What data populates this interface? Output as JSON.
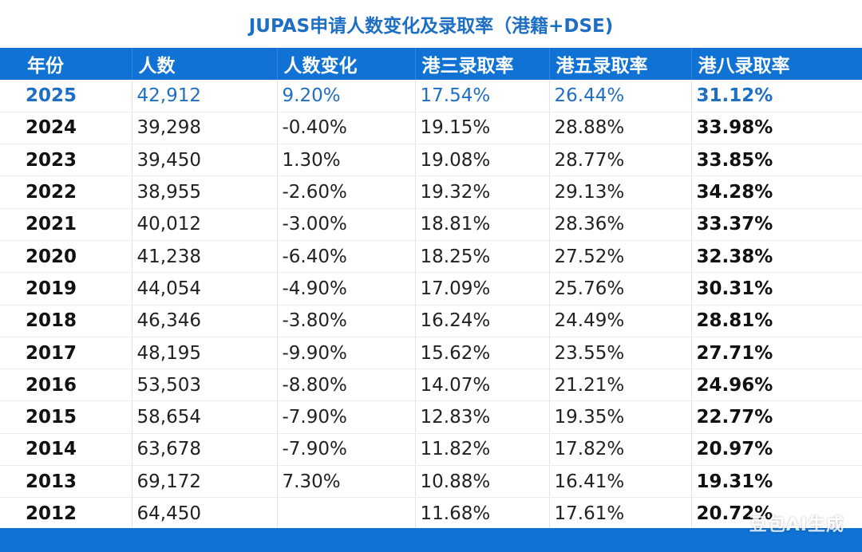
{
  "title": "JUPAS申请人数变化及录取率（港籍+DSE)",
  "columns": [
    "年份",
    "人数",
    "人数变化",
    "港三录取率",
    "港五录取率",
    "港八录取率"
  ],
  "rows": [
    [
      "2025",
      "42,912",
      "9.20%",
      "17.54%",
      "26.44%",
      "31.12%"
    ],
    [
      "2024",
      "39,298",
      "-0.40%",
      "19.15%",
      "28.88%",
      "33.98%"
    ],
    [
      "2023",
      "39,450",
      "1.30%",
      "19.08%",
      "28.77%",
      "33.85%"
    ],
    [
      "2022",
      "38,955",
      "-2.60%",
      "19.32%",
      "29.13%",
      "34.28%"
    ],
    [
      "2021",
      "40,012",
      "-3.00%",
      "18.81%",
      "28.36%",
      "33.37%"
    ],
    [
      "2020",
      "41,238",
      "-6.40%",
      "18.25%",
      "27.52%",
      "32.38%"
    ],
    [
      "2019",
      "44,054",
      "-4.90%",
      "17.09%",
      "25.76%",
      "30.31%"
    ],
    [
      "2018",
      "46,346",
      "-3.80%",
      "16.24%",
      "24.49%",
      "28.81%"
    ],
    [
      "2017",
      "48,195",
      "-9.90%",
      "15.62%",
      "23.55%",
      "27.71%"
    ],
    [
      "2016",
      "53,503",
      "-8.80%",
      "14.07%",
      "21.21%",
      "24.96%"
    ],
    [
      "2015",
      "58,654",
      "-7.90%",
      "12.83%",
      "19.35%",
      "22.77%"
    ],
    [
      "2014",
      "63,678",
      "-7.90%",
      "11.82%",
      "17.82%",
      "20.97%"
    ],
    [
      "2013",
      "69,172",
      "7.30%",
      "10.88%",
      "16.41%",
      "19.31%"
    ],
    [
      "2012",
      "64,450",
      "",
      "11.68%",
      "17.61%",
      "20.72%"
    ]
  ],
  "watermark": "豆包AI生成",
  "colors": {
    "accent": "#0f72d4",
    "highlight_text": "#1e6fc4"
  }
}
